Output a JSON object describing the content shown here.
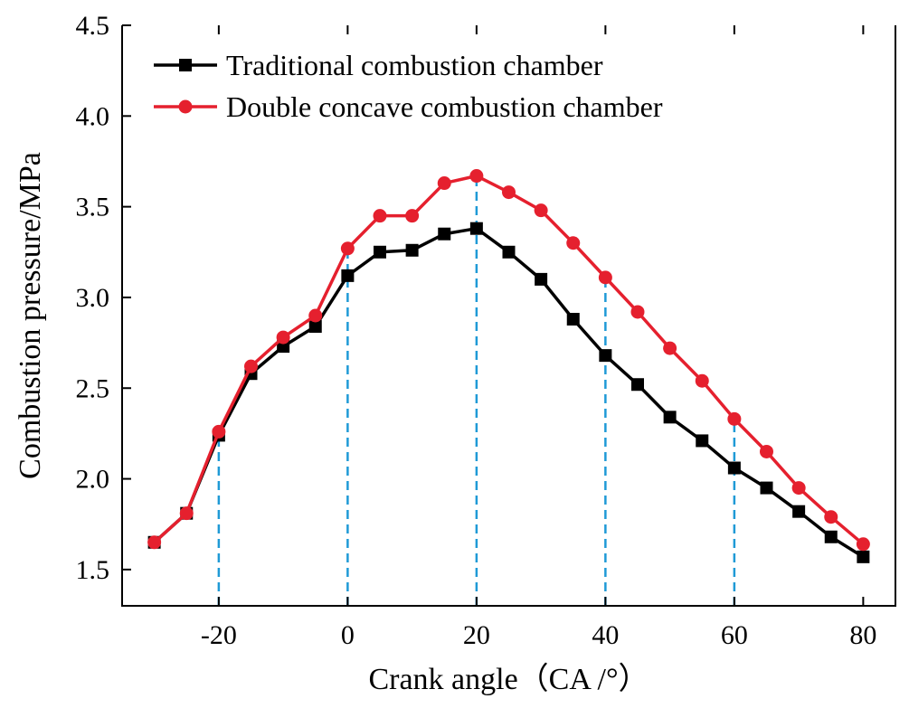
{
  "chart_data": {
    "type": "line",
    "title": "",
    "xlabel": "Crank angle（CA /°）",
    "ylabel": "Combustion pressure/MPa",
    "xlim": [
      -35,
      85
    ],
    "ylim": [
      1.3,
      4.5
    ],
    "x_ticks": [
      -20,
      0,
      20,
      40,
      60,
      80
    ],
    "x_tick_labels": [
      "-20",
      "0",
      "20",
      "40",
      "60",
      "80"
    ],
    "y_ticks": [
      1.5,
      2.0,
      2.5,
      3.0,
      3.5,
      4.0,
      4.5
    ],
    "y_tick_labels": [
      "1.5",
      "2.0",
      "2.5",
      "3.0",
      "3.5",
      "4.0",
      "4.5"
    ],
    "grid": false,
    "legend_position": "top-left",
    "reference_lines_x": [
      -20,
      0,
      20,
      40,
      60
    ],
    "x": [
      -30,
      -25,
      -20,
      -15,
      -10,
      -5,
      0,
      5,
      10,
      15,
      20,
      25,
      30,
      35,
      40,
      45,
      50,
      55,
      60,
      65,
      70,
      75,
      80
    ],
    "series": [
      {
        "name": "Traditional combustion chamber",
        "color": "#000000",
        "marker": "square",
        "values": [
          1.65,
          1.81,
          2.24,
          2.58,
          2.73,
          2.84,
          3.12,
          3.25,
          3.26,
          3.35,
          3.38,
          3.25,
          3.1,
          2.88,
          2.68,
          2.52,
          2.34,
          2.21,
          2.06,
          1.95,
          1.82,
          1.68,
          1.57
        ]
      },
      {
        "name": "Double concave combustion chamber",
        "color": "#e5202e",
        "marker": "circle",
        "values": [
          1.65,
          1.81,
          2.26,
          2.62,
          2.78,
          2.9,
          3.27,
          3.45,
          3.45,
          3.63,
          3.67,
          3.58,
          3.48,
          3.3,
          3.11,
          2.92,
          2.72,
          2.54,
          2.33,
          2.15,
          1.95,
          1.79,
          1.64
        ]
      }
    ]
  }
}
